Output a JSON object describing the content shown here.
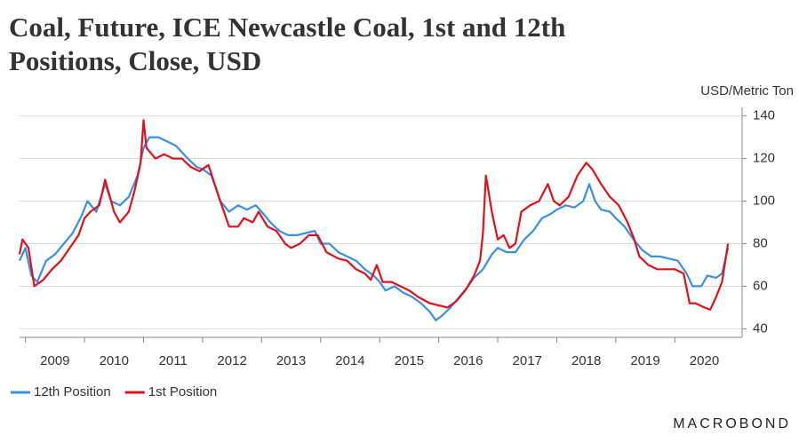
{
  "chart_data": {
    "type": "line",
    "title": [
      "Coal, Future, ICE Newcastle Coal, 1st and 12th",
      "Positions, Close, USD"
    ],
    "y_label": "USD/Metric Ton",
    "logo": "MACROBOND",
    "xlim": [
      2008.9,
      2021.14
    ],
    "xticks": [
      {
        "value": 2009,
        "label": "2009"
      },
      {
        "value": 2010,
        "label": "2010"
      },
      {
        "value": 2011,
        "label": "2011"
      },
      {
        "value": 2012,
        "label": "2012"
      },
      {
        "value": 2013,
        "label": "2013"
      },
      {
        "value": 2014,
        "label": "2014"
      },
      {
        "value": 2015,
        "label": "2015"
      },
      {
        "value": 2016,
        "label": "2016"
      },
      {
        "value": 2017,
        "label": "2017"
      },
      {
        "value": 2018,
        "label": "2018"
      },
      {
        "value": 2019,
        "label": "2019"
      },
      {
        "value": 2020,
        "label": "2020"
      }
    ],
    "ylim": [
      36,
      144
    ],
    "yticks": [
      40,
      60,
      80,
      100,
      120,
      140
    ],
    "grid": true,
    "legend": "bottom-left",
    "series": [
      {
        "name": "12th Position",
        "color": "#3a8ee6",
        "x": [
          2008.9,
          2009.0,
          2009.1,
          2009.2,
          2009.35,
          2009.5,
          2009.65,
          2009.8,
          2009.95,
          2010.05,
          2010.2,
          2010.35,
          2010.45,
          2010.6,
          2010.75,
          2010.9,
          2011.0,
          2011.1,
          2011.25,
          2011.4,
          2011.55,
          2011.75,
          2011.9,
          2012.0,
          2012.15,
          2012.3,
          2012.45,
          2012.6,
          2012.75,
          2012.9,
          2013.0,
          2013.15,
          2013.3,
          2013.45,
          2013.6,
          2013.75,
          2013.9,
          2014.0,
          2014.15,
          2014.3,
          2014.45,
          2014.6,
          2014.75,
          2014.9,
          2015.0,
          2015.1,
          2015.25,
          2015.4,
          2015.55,
          2015.7,
          2015.85,
          2015.95,
          2016.05,
          2016.2,
          2016.35,
          2016.5,
          2016.6,
          2016.75,
          2016.9,
          2017.0,
          2017.15,
          2017.3,
          2017.45,
          2017.6,
          2017.75,
          2017.9,
          2018.0,
          2018.15,
          2018.3,
          2018.45,
          2018.55,
          2018.65,
          2018.75,
          2018.9,
          2019.0,
          2019.15,
          2019.3,
          2019.45,
          2019.6,
          2019.75,
          2019.9,
          2020.05,
          2020.2,
          2020.3,
          2020.45,
          2020.55,
          2020.7,
          2020.8,
          2020.9
        ],
        "values": [
          72,
          78,
          65,
          62,
          72,
          75,
          80,
          85,
          93,
          100,
          95,
          108,
          100,
          98,
          102,
          112,
          125,
          130,
          130,
          128,
          126,
          120,
          116,
          115,
          112,
          100,
          95,
          98,
          96,
          98,
          95,
          90,
          86,
          84,
          84,
          85,
          86,
          80,
          80,
          76,
          74,
          72,
          68,
          65,
          62,
          58,
          60,
          57,
          55,
          52,
          48,
          44,
          46,
          50,
          55,
          60,
          64,
          68,
          75,
          78,
          76,
          76,
          82,
          86,
          92,
          94,
          96,
          98,
          97,
          100,
          108,
          100,
          96,
          95,
          92,
          88,
          82,
          77,
          74,
          74,
          73,
          72,
          66,
          60,
          60,
          65,
          64,
          66,
          78
        ]
      },
      {
        "name": "1st Position",
        "color": "#e3101b",
        "x": [
          2008.9,
          2008.95,
          2009.05,
          2009.15,
          2009.3,
          2009.45,
          2009.6,
          2009.75,
          2009.9,
          2010.0,
          2010.1,
          2010.25,
          2010.35,
          2010.5,
          2010.6,
          2010.75,
          2010.85,
          2010.95,
          2011.0,
          2011.05,
          2011.2,
          2011.35,
          2011.5,
          2011.65,
          2011.8,
          2011.95,
          2012.1,
          2012.3,
          2012.45,
          2012.6,
          2012.7,
          2012.85,
          2012.95,
          2013.1,
          2013.25,
          2013.4,
          2013.5,
          2013.65,
          2013.8,
          2013.95,
          2014.1,
          2014.3,
          2014.45,
          2014.6,
          2014.75,
          2014.85,
          2014.95,
          2015.05,
          2015.2,
          2015.35,
          2015.5,
          2015.65,
          2015.85,
          2016.0,
          2016.15,
          2016.3,
          2016.45,
          2016.6,
          2016.7,
          2016.75,
          2016.8,
          2016.9,
          2017.0,
          2017.1,
          2017.2,
          2017.3,
          2017.4,
          2017.55,
          2017.7,
          2017.85,
          2017.95,
          2018.05,
          2018.2,
          2018.35,
          2018.5,
          2018.6,
          2018.75,
          2018.9,
          2019.05,
          2019.2,
          2019.3,
          2019.4,
          2019.55,
          2019.7,
          2019.85,
          2020.0,
          2020.15,
          2020.25,
          2020.35,
          2020.5,
          2020.6,
          2020.7,
          2020.8,
          2020.9
        ],
        "values": [
          75,
          82,
          78,
          60,
          63,
          68,
          72,
          78,
          84,
          92,
          95,
          98,
          110,
          95,
          90,
          95,
          105,
          118,
          138,
          125,
          120,
          122,
          120,
          120,
          116,
          114,
          117,
          100,
          88,
          88,
          92,
          90,
          95,
          88,
          86,
          80,
          78,
          80,
          84,
          84,
          76,
          73,
          72,
          68,
          66,
          63,
          70,
          62,
          62,
          60,
          58,
          55,
          52,
          51,
          50,
          53,
          58,
          65,
          72,
          85,
          112,
          95,
          82,
          84,
          78,
          80,
          95,
          98,
          100,
          108,
          100,
          98,
          102,
          112,
          118,
          115,
          108,
          102,
          98,
          90,
          83,
          74,
          70,
          68,
          68,
          68,
          66,
          52,
          52,
          50,
          49,
          55,
          62,
          80
        ]
      }
    ]
  }
}
